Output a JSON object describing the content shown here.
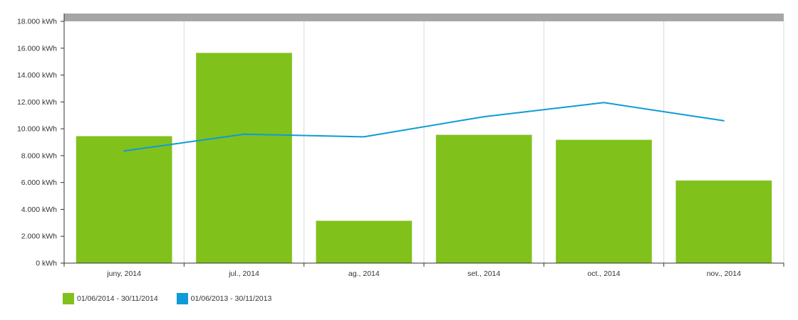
{
  "chart_data": {
    "type": "bar",
    "title": "",
    "xlabel": "",
    "ylabel": "",
    "ylim": [
      0,
      18000
    ],
    "yticks": [
      0,
      2000,
      4000,
      6000,
      8000,
      10000,
      12000,
      14000,
      16000,
      18000
    ],
    "ytick_labels": [
      "0 kWh",
      "2.000 kWh",
      "4.000 kWh",
      "6.000 kWh",
      "8.000 kWh",
      "10.000 kWh",
      "12.000 kWh",
      "14.000 kWh",
      "16.000 kWh",
      "18.000 kWh"
    ],
    "categories": [
      "juny, 2014",
      "jul., 2014",
      "ag., 2014",
      "set., 2014",
      "oct., 2014",
      "nov., 2014"
    ],
    "series": [
      {
        "name": "01/06/2014 - 30/11/2014",
        "type": "bar",
        "color": "#80c11c",
        "values": [
          9450,
          15650,
          3150,
          9550,
          9180,
          6150
        ]
      },
      {
        "name": "01/06/2013 - 30/11/2013",
        "type": "line",
        "color": "#0e9bd8",
        "values": [
          8350,
          9600,
          9400,
          10900,
          11950,
          10600
        ]
      }
    ],
    "grid": "vertical",
    "legend_position": "bottom-left",
    "top_band_color": "#a6a6a6"
  }
}
